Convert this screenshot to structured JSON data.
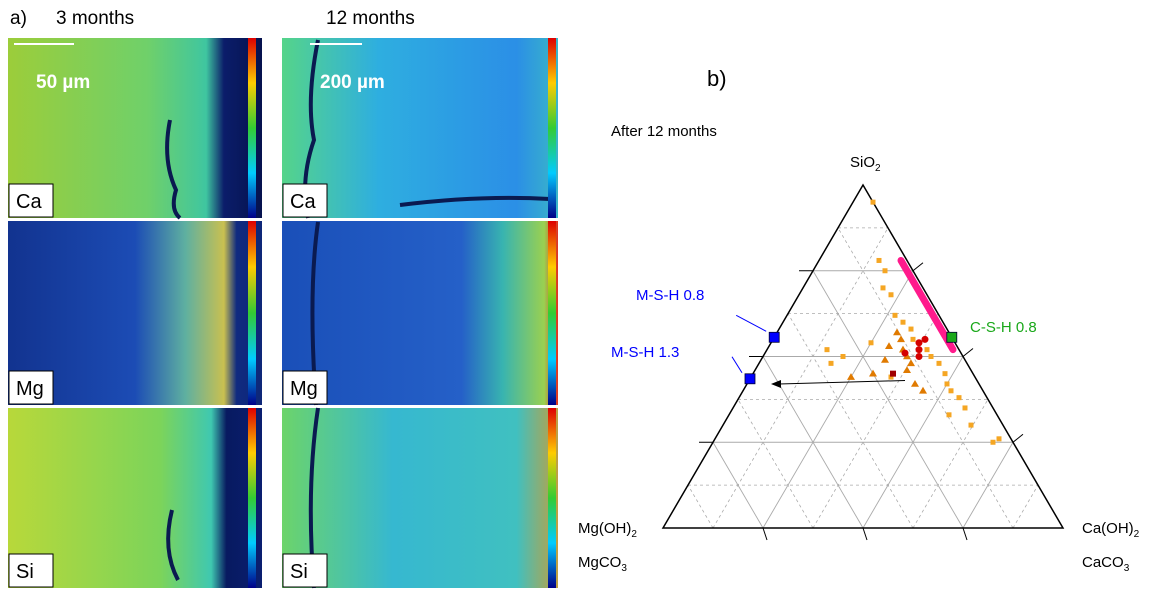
{
  "panel_a": {
    "label": "a)",
    "columns": [
      "3 months",
      "12 months"
    ],
    "scale_bars": [
      "50 µm",
      "200 µm"
    ],
    "elements": [
      "Ca",
      "Mg",
      "Si"
    ]
  },
  "panel_b": {
    "label": "b)",
    "title": "After 12 months",
    "apex_top": {
      "text": "SiO",
      "sub": "2"
    },
    "apex_left": [
      {
        "text": "Mg(OH)",
        "sub": "2"
      },
      {
        "text": "MgCO",
        "sub": "3"
      }
    ],
    "apex_right": [
      {
        "text": "Ca(OH)",
        "sub": "2"
      },
      {
        "text": "CaCO",
        "sub": "3"
      }
    ],
    "grid_major": [
      0.25,
      0.5,
      0.75
    ],
    "grid_minor": [
      0.125,
      0.375,
      0.625,
      0.875
    ],
    "references": [
      {
        "label": "M-S-H 0.8",
        "si": 0.556,
        "ca": 0,
        "color": "#0000ff"
      },
      {
        "label": "M-S-H 1.3",
        "si": 0.435,
        "ca": 0,
        "color": "#0000ff"
      },
      {
        "label": "C-S-H 0.8",
        "si": 0.556,
        "ca": 0.444,
        "color": "#1aa81a"
      }
    ],
    "csh_band": [
      [
        0.78,
        0.2
      ],
      [
        0.52,
        0.46
      ]
    ],
    "arrow": [
      [
        0.43,
        0.39
      ],
      [
        0.42,
        0.06
      ]
    ],
    "squares": [
      [
        0.95,
        0.05
      ],
      [
        0.78,
        0.15
      ],
      [
        0.75,
        0.18
      ],
      [
        0.7,
        0.2
      ],
      [
        0.68,
        0.23
      ],
      [
        0.62,
        0.27
      ],
      [
        0.6,
        0.3
      ],
      [
        0.58,
        0.33
      ],
      [
        0.55,
        0.35
      ],
      [
        0.52,
        0.4
      ],
      [
        0.5,
        0.42
      ],
      [
        0.48,
        0.45
      ],
      [
        0.45,
        0.48
      ],
      [
        0.42,
        0.5
      ],
      [
        0.4,
        0.52
      ],
      [
        0.38,
        0.55
      ],
      [
        0.35,
        0.58
      ],
      [
        0.3,
        0.62
      ],
      [
        0.25,
        0.7
      ],
      [
        0.54,
        0.25
      ],
      [
        0.5,
        0.2
      ],
      [
        0.52,
        0.15
      ],
      [
        0.48,
        0.18
      ],
      [
        0.44,
        0.35
      ],
      [
        0.33,
        0.55
      ],
      [
        0.26,
        0.71
      ]
    ],
    "triangles": [
      [
        0.55,
        0.32
      ],
      [
        0.52,
        0.34
      ],
      [
        0.5,
        0.36
      ],
      [
        0.48,
        0.38
      ],
      [
        0.46,
        0.38
      ],
      [
        0.53,
        0.3
      ],
      [
        0.45,
        0.3
      ],
      [
        0.44,
        0.25
      ],
      [
        0.42,
        0.42
      ],
      [
        0.4,
        0.45
      ],
      [
        0.57,
        0.3
      ],
      [
        0.49,
        0.31
      ]
    ],
    "circles": [
      [
        0.54,
        0.37
      ],
      [
        0.52,
        0.38
      ],
      [
        0.55,
        0.38
      ],
      [
        0.51,
        0.35
      ],
      [
        0.5,
        0.39
      ]
    ],
    "dark_squares": [
      [
        0.45,
        0.35
      ]
    ]
  }
}
